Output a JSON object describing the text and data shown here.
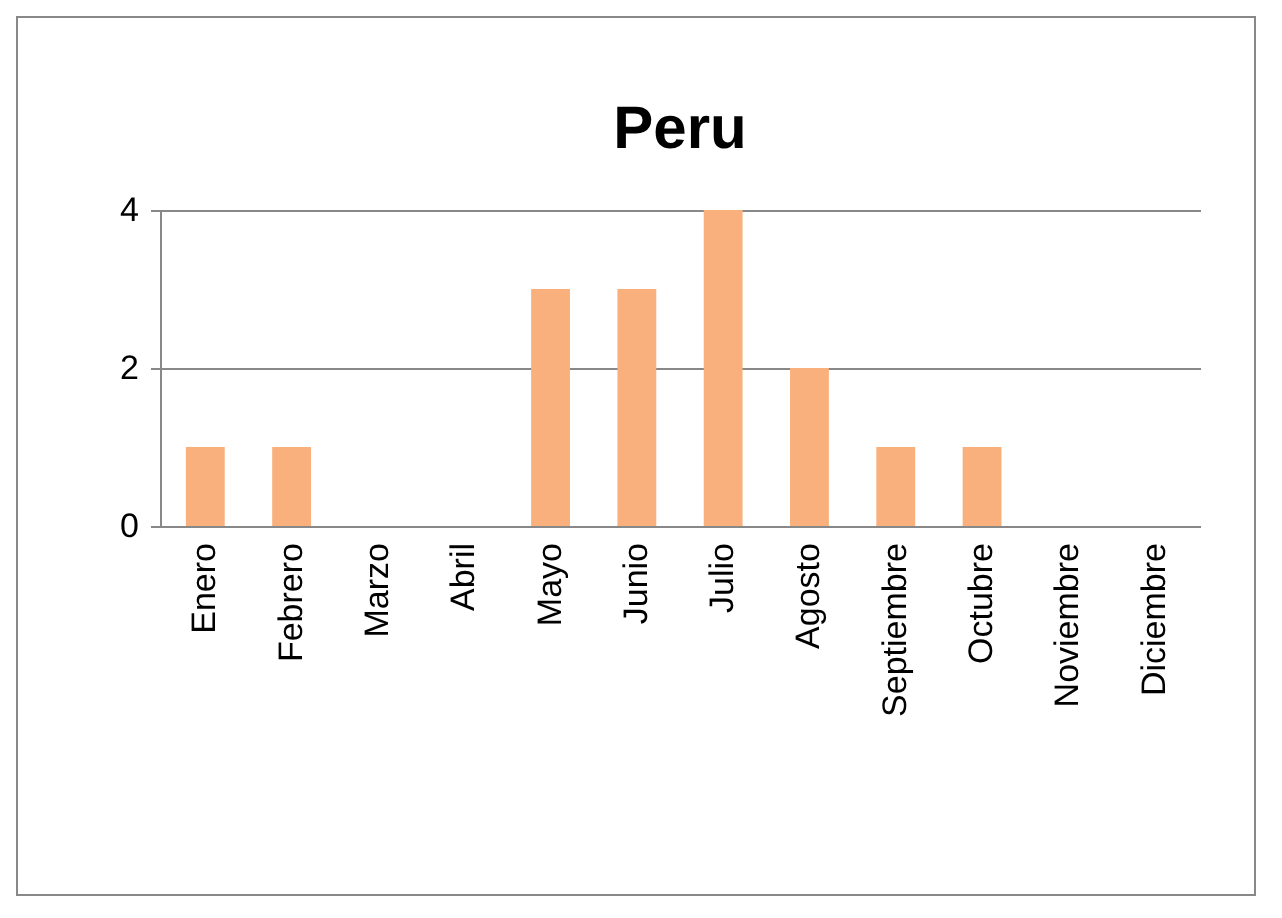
{
  "chart_data": {
    "type": "bar",
    "title": "Peru",
    "categories": [
      "Enero",
      "Febrero",
      "Marzo",
      "Abril",
      "Mayo",
      "Junio",
      "Julio",
      "Agosto",
      "Septiembre",
      "Octubre",
      "Noviembre",
      "Diciembre"
    ],
    "values": [
      1,
      1,
      0,
      0,
      3,
      3,
      4,
      2,
      1,
      1,
      0,
      0
    ],
    "color": "#f9b07c",
    "ylim": [
      0,
      4
    ],
    "yticks": [
      0,
      2,
      4
    ],
    "grid": "y"
  }
}
